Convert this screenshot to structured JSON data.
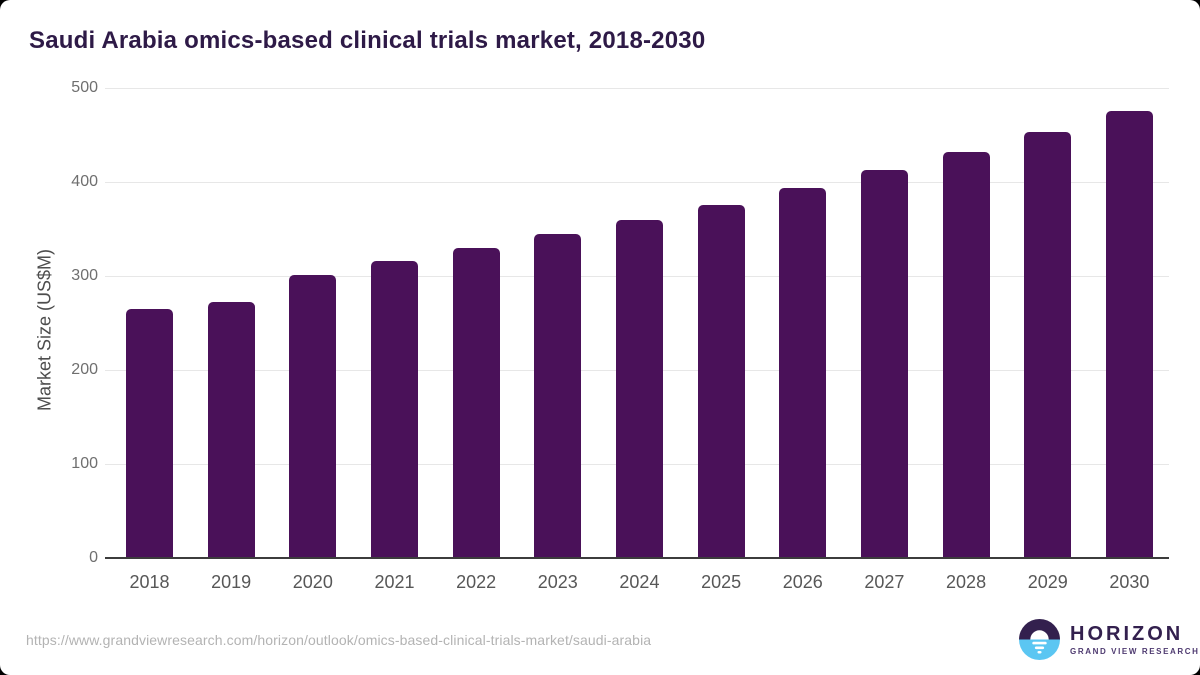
{
  "page": {
    "title": "Saudi Arabia omics-based clinical trials market, 2018-2030",
    "source_url": "https://www.grandviewresearch.com/horizon/outlook/omics-based-clinical-trials-market/saudi-arabia"
  },
  "logo": {
    "name": "HORIZON",
    "subtext": "GRAND VIEW RESEARCH",
    "icon": "horizon-sunset-circle-icon",
    "dark_color": "#33204E",
    "blue_color": "#5BC6F2"
  },
  "colors": {
    "bar": "#4A1159",
    "title_text": "#2E1A47",
    "ytick_text": "#6f6f6f",
    "xtick_text": "#575757",
    "gridline": "#e7e7e7",
    "baseline": "#3c3c3c",
    "url_text": "#b3b3b3",
    "background": "#ffffff"
  },
  "chart_data": {
    "type": "bar",
    "title": "Saudi Arabia omics-based clinical trials market, 2018-2030",
    "xlabel": "",
    "ylabel": "Market Size (US$M)",
    "categories": [
      "2018",
      "2019",
      "2020",
      "2021",
      "2022",
      "2023",
      "2024",
      "2025",
      "2026",
      "2027",
      "2028",
      "2029",
      "2030"
    ],
    "values": [
      265,
      272,
      301,
      316,
      330,
      345,
      360,
      376,
      394,
      413,
      432,
      453,
      476
    ],
    "ylim": [
      0,
      500
    ],
    "yticks": [
      0,
      100,
      200,
      300,
      400,
      500
    ],
    "grid": "horizontal",
    "legend": "none",
    "bar_color": "#4A1159"
  }
}
